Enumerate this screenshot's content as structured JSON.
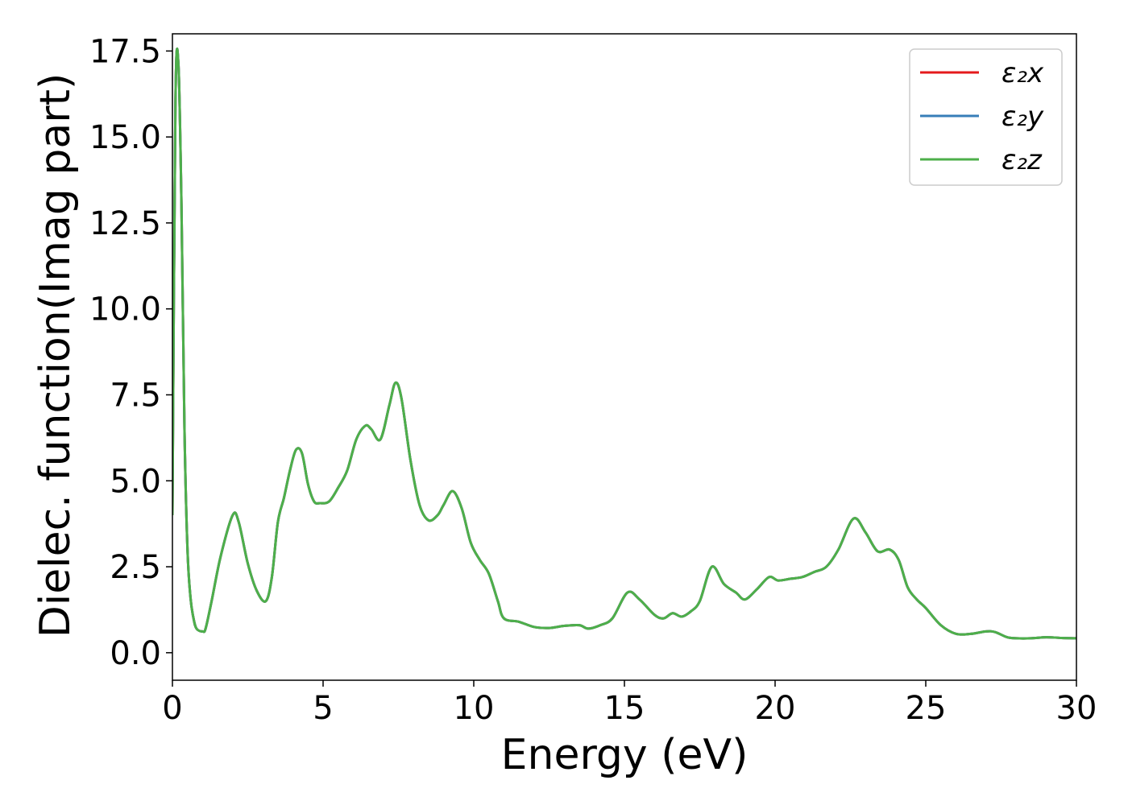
{
  "chart_data": {
    "type": "line",
    "xlabel": "Energy (eV)",
    "ylabel": "Dielec. function(Imag part)",
    "xlim": [
      0,
      30
    ],
    "ylim": [
      -0.8,
      18.0
    ],
    "xticks": [
      "0",
      "5",
      "10",
      "15",
      "20",
      "25",
      "30"
    ],
    "xtick_values": [
      0,
      5,
      10,
      15,
      20,
      25,
      30
    ],
    "yticks": [
      "0.0",
      "2.5",
      "5.0",
      "7.5",
      "10.0",
      "12.5",
      "15.0",
      "17.5"
    ],
    "ytick_values": [
      0,
      2.5,
      5,
      7.5,
      10,
      12.5,
      15,
      17.5
    ],
    "grid": false,
    "legend_position": "top-right",
    "x": [
      0.0,
      0.1,
      0.2,
      0.3,
      0.4,
      0.5,
      0.6,
      0.7,
      0.8,
      1.0,
      1.1,
      1.3,
      1.6,
      2.0,
      2.2,
      2.5,
      2.8,
      3.1,
      3.3,
      3.5,
      3.7,
      3.9,
      4.1,
      4.3,
      4.5,
      4.7,
      4.9,
      5.2,
      5.5,
      5.8,
      6.1,
      6.4,
      6.6,
      6.9,
      7.2,
      7.4,
      7.6,
      7.9,
      8.2,
      8.5,
      8.8,
      9.0,
      9.3,
      9.6,
      9.9,
      10.2,
      10.5,
      10.8,
      11.0,
      11.5,
      12.0,
      12.5,
      13.0,
      13.5,
      13.8,
      14.2,
      14.6,
      15.1,
      15.5,
      16.0,
      16.3,
      16.6,
      16.9,
      17.2,
      17.5,
      17.9,
      18.3,
      18.7,
      19.0,
      19.4,
      19.8,
      20.1,
      20.5,
      20.9,
      21.3,
      21.7,
      22.1,
      22.6,
      23.0,
      23.4,
      23.8,
      24.1,
      24.4,
      24.7,
      25.0,
      25.5,
      26.0,
      26.5,
      27.0,
      27.3,
      27.7,
      28.0,
      28.5,
      29.0,
      29.5,
      30.0
    ],
    "series": [
      {
        "name": "ε₂x",
        "color": "#e41a1c",
        "y": [
          4.0,
          16.0,
          17.1,
          13.0,
          6.5,
          3.0,
          1.6,
          1.0,
          0.7,
          0.62,
          0.7,
          1.5,
          2.8,
          4.0,
          3.8,
          2.6,
          1.8,
          1.5,
          2.2,
          3.8,
          4.5,
          5.3,
          5.9,
          5.8,
          4.9,
          4.4,
          4.35,
          4.4,
          4.8,
          5.3,
          6.2,
          6.6,
          6.5,
          6.2,
          7.2,
          7.85,
          7.4,
          5.6,
          4.3,
          3.85,
          4.0,
          4.3,
          4.7,
          4.2,
          3.2,
          2.7,
          2.3,
          1.5,
          1.0,
          0.9,
          0.75,
          0.72,
          0.78,
          0.8,
          0.7,
          0.8,
          1.0,
          1.75,
          1.55,
          1.1,
          1.0,
          1.15,
          1.05,
          1.2,
          1.5,
          2.5,
          2.0,
          1.75,
          1.55,
          1.85,
          2.2,
          2.1,
          2.15,
          2.2,
          2.35,
          2.5,
          3.0,
          3.9,
          3.5,
          2.95,
          3.0,
          2.7,
          1.9,
          1.55,
          1.3,
          0.8,
          0.55,
          0.55,
          0.62,
          0.6,
          0.45,
          0.42,
          0.42,
          0.45,
          0.43,
          0.42
        ]
      },
      {
        "name": "ε₂y",
        "color": "#377eb8",
        "y": [
          4.0,
          16.0,
          17.1,
          13.0,
          6.5,
          3.0,
          1.6,
          1.0,
          0.7,
          0.62,
          0.7,
          1.5,
          2.8,
          4.0,
          3.8,
          2.6,
          1.8,
          1.5,
          2.2,
          3.8,
          4.5,
          5.3,
          5.9,
          5.8,
          4.9,
          4.4,
          4.35,
          4.4,
          4.8,
          5.3,
          6.2,
          6.6,
          6.5,
          6.2,
          7.2,
          7.85,
          7.4,
          5.6,
          4.3,
          3.85,
          4.0,
          4.3,
          4.7,
          4.2,
          3.2,
          2.7,
          2.3,
          1.5,
          1.0,
          0.9,
          0.75,
          0.72,
          0.78,
          0.8,
          0.7,
          0.8,
          1.0,
          1.75,
          1.55,
          1.1,
          1.0,
          1.15,
          1.05,
          1.2,
          1.5,
          2.5,
          2.0,
          1.75,
          1.55,
          1.85,
          2.2,
          2.1,
          2.15,
          2.2,
          2.35,
          2.5,
          3.0,
          3.9,
          3.5,
          2.95,
          3.0,
          2.7,
          1.9,
          1.55,
          1.3,
          0.8,
          0.55,
          0.55,
          0.62,
          0.6,
          0.45,
          0.42,
          0.42,
          0.45,
          0.43,
          0.42
        ]
      },
      {
        "name": "ε₂z",
        "color": "#4daf4a",
        "y": [
          4.0,
          16.0,
          17.1,
          13.0,
          6.5,
          3.0,
          1.6,
          1.0,
          0.7,
          0.62,
          0.7,
          1.5,
          2.8,
          4.0,
          3.8,
          2.6,
          1.8,
          1.5,
          2.2,
          3.8,
          4.5,
          5.3,
          5.9,
          5.8,
          4.9,
          4.4,
          4.35,
          4.4,
          4.8,
          5.3,
          6.2,
          6.6,
          6.5,
          6.2,
          7.2,
          7.85,
          7.4,
          5.6,
          4.3,
          3.85,
          4.0,
          4.3,
          4.7,
          4.2,
          3.2,
          2.7,
          2.3,
          1.5,
          1.0,
          0.9,
          0.75,
          0.72,
          0.78,
          0.8,
          0.7,
          0.8,
          1.0,
          1.75,
          1.55,
          1.1,
          1.0,
          1.15,
          1.05,
          1.2,
          1.5,
          2.5,
          2.0,
          1.75,
          1.55,
          1.85,
          2.2,
          2.1,
          2.15,
          2.2,
          2.35,
          2.5,
          3.0,
          3.9,
          3.5,
          2.95,
          3.0,
          2.7,
          1.9,
          1.55,
          1.3,
          0.8,
          0.55,
          0.55,
          0.62,
          0.6,
          0.45,
          0.42,
          0.42,
          0.45,
          0.43,
          0.42
        ]
      }
    ]
  }
}
